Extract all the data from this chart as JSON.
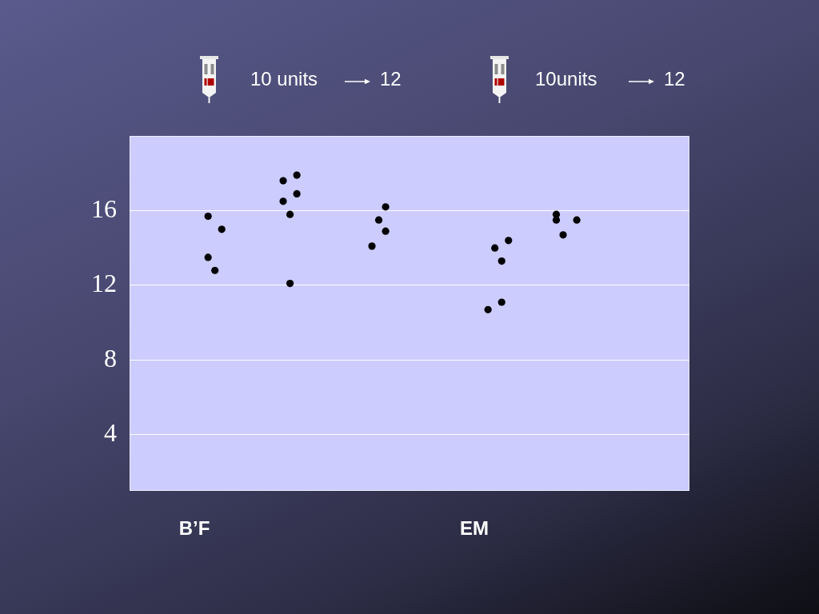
{
  "chart_data": {
    "type": "scatter",
    "categories": [
      null,
      null,
      null,
      null,
      null,
      null,
      null,
      null,
      null,
      "B’F",
      null,
      null,
      null,
      null,
      null,
      null,
      null,
      null,
      null,
      null,
      null,
      null,
      null,
      null,
      null,
      null,
      null,
      null,
      null,
      null,
      null,
      null,
      null,
      null,
      null,
      null,
      null,
      null,
      null,
      null,
      null,
      null,
      null,
      null,
      null,
      null,
      null,
      null,
      null,
      null,
      "EM",
      null,
      null,
      null,
      null,
      null,
      null,
      null,
      null,
      null,
      null,
      null,
      null,
      null,
      null,
      null,
      null,
      null,
      null,
      null,
      null,
      null,
      null,
      null,
      null,
      null,
      null,
      null,
      null,
      null,
      null,
      null
    ],
    "series": [
      {
        "color": "#000000",
        "values": [
          null,
          null,
          null,
          null,
          null,
          null,
          null,
          null,
          null,
          null,
          null,
          15.7,
          12.8,
          15,
          null,
          null,
          null,
          null,
          null,
          null,
          null,
          null,
          17.6,
          15.8,
          17.9,
          null,
          null,
          null,
          null,
          null,
          null,
          null,
          null,
          null,
          null,
          14.1,
          15.5,
          16.2,
          null,
          null,
          null,
          null,
          null,
          null,
          null,
          null,
          null,
          null,
          null,
          null,
          null,
          null,
          10.7,
          14.0,
          13.3,
          14.4,
          null,
          null,
          null,
          null,
          null,
          null,
          15.8,
          14.7,
          null,
          15.5,
          null,
          null,
          null,
          null,
          null,
          null,
          null,
          null,
          null,
          null,
          null,
          null,
          null,
          null,
          null,
          null
        ]
      },
      {
        "color": "#000000",
        "values": [
          null,
          null,
          null,
          null,
          null,
          null,
          null,
          null,
          null,
          null,
          null,
          13.5,
          null,
          null,
          null,
          null,
          null,
          null,
          null,
          null,
          null,
          null,
          16.5,
          12.1,
          16.9,
          null,
          null,
          null,
          null,
          null,
          null,
          null,
          null,
          null,
          null,
          null,
          null,
          14.9,
          null,
          null,
          null,
          null,
          null,
          null,
          null,
          null,
          null,
          null,
          null,
          null,
          null,
          null,
          null,
          null,
          11.1,
          null,
          null,
          null,
          null,
          null,
          null,
          null,
          15.5,
          null,
          null,
          null,
          null,
          null,
          null,
          null,
          null,
          null,
          null,
          null,
          null,
          null,
          null,
          null,
          null,
          null,
          null,
          null
        ]
      }
    ],
    "ylim": [
      1,
      20
    ],
    "yticks": [
      4,
      8,
      12,
      16
    ],
    "grid": "y",
    "marker": "circle",
    "annotations": [
      "10 units",
      "12",
      "10units",
      "12"
    ]
  }
}
